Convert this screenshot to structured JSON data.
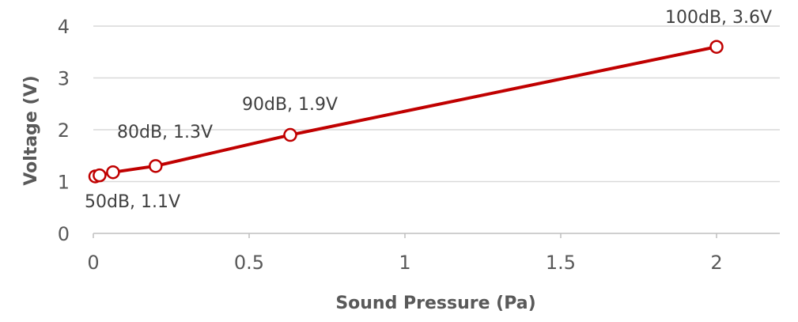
{
  "chart_data": {
    "type": "scatter",
    "xlabel": "Sound Pressure (Pa)",
    "ylabel": "Voltage (V)",
    "xlim": [
      0,
      2.2
    ],
    "ylim": [
      0,
      4
    ],
    "x_ticks": [
      "0",
      "0.5",
      "1",
      "1.5",
      "2"
    ],
    "y_ticks": [
      "0",
      "1",
      "2",
      "3",
      "4"
    ],
    "grid": "horizontal",
    "line_color": "#c00000",
    "series": [
      {
        "points": [
          {
            "x": 0.0063,
            "y": 1.1
          },
          {
            "x": 0.02,
            "y": 1.12
          },
          {
            "x": 0.0632,
            "y": 1.18
          },
          {
            "x": 0.2,
            "y": 1.3
          },
          {
            "x": 0.632,
            "y": 1.9
          },
          {
            "x": 2.0,
            "y": 3.6
          }
        ]
      }
    ],
    "annotations": [
      {
        "text": "50dB, 1.1V"
      },
      {
        "text": "80dB, 1.3V"
      },
      {
        "text": "90dB, 1.9V"
      },
      {
        "text": "100dB, 3.6V"
      }
    ]
  }
}
